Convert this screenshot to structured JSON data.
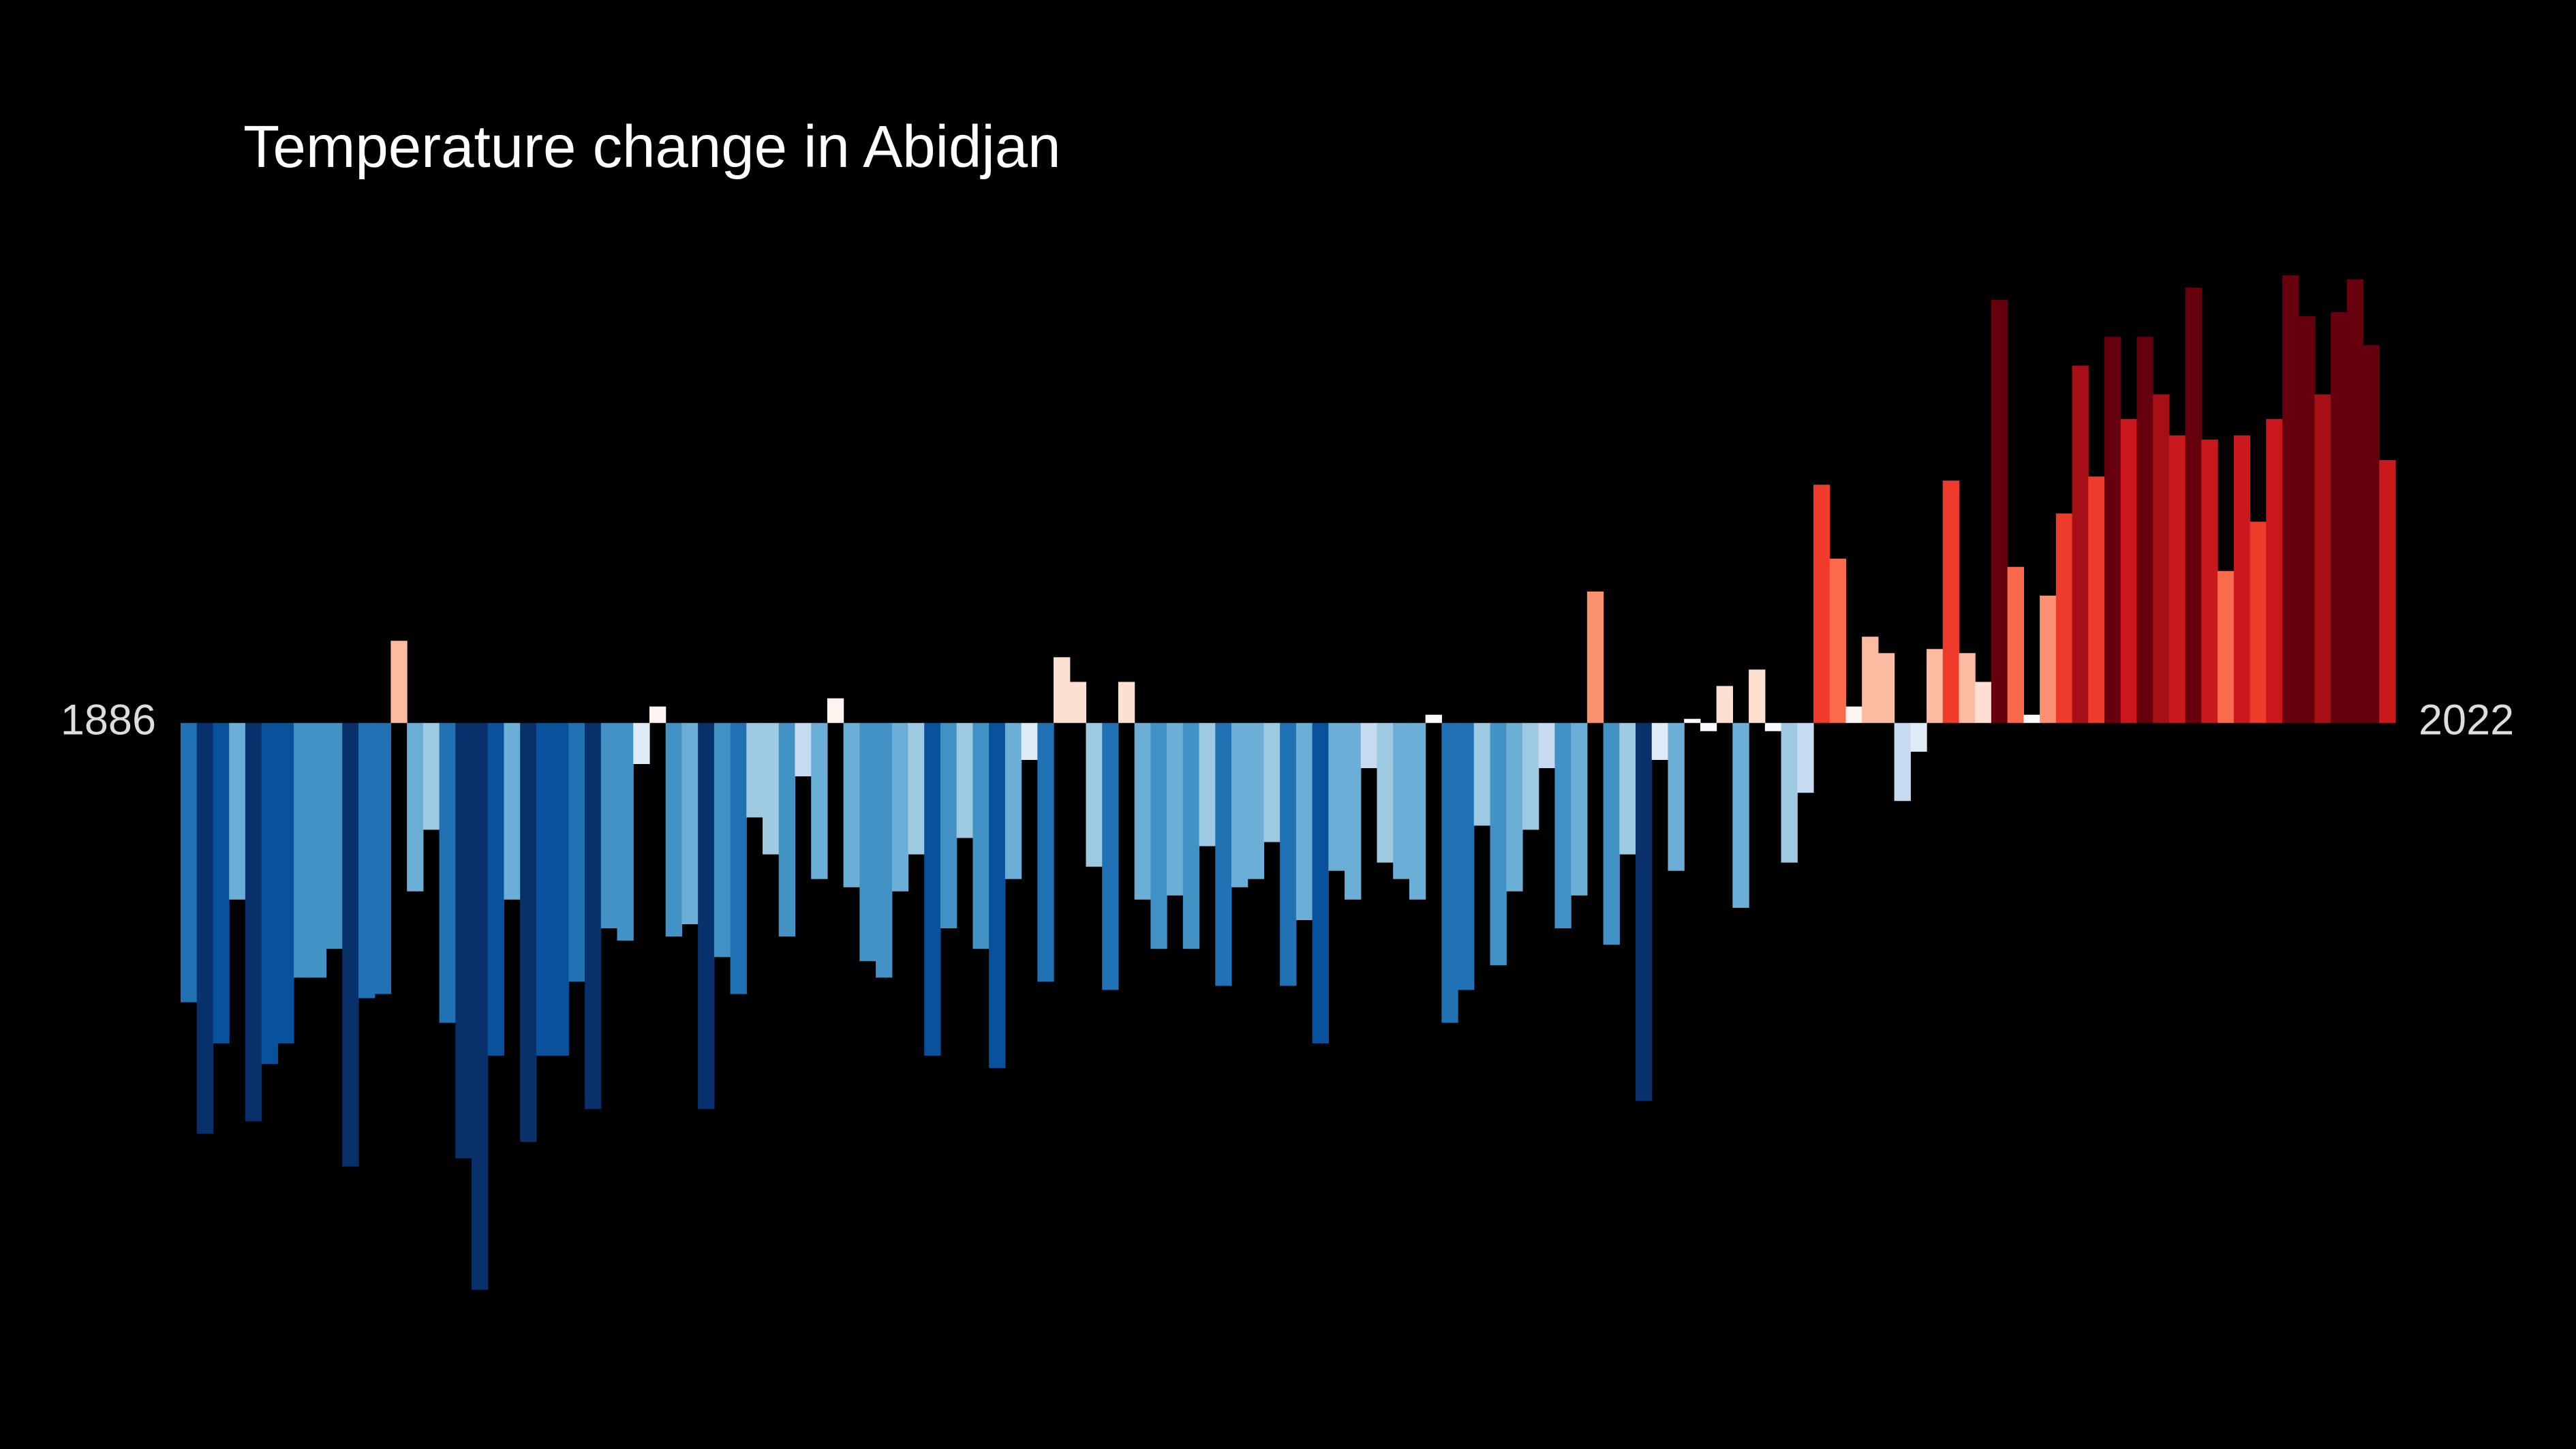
{
  "chart_data": {
    "type": "bar",
    "title": "Temperature change in Abidjan",
    "x": [
      1886,
      1887,
      1888,
      1889,
      1890,
      1891,
      1892,
      1893,
      1894,
      1895,
      1896,
      1897,
      1898,
      1899,
      1900,
      1901,
      1902,
      1903,
      1904,
      1905,
      1906,
      1907,
      1908,
      1909,
      1910,
      1911,
      1912,
      1913,
      1914,
      1915,
      1916,
      1917,
      1918,
      1919,
      1920,
      1921,
      1922,
      1923,
      1924,
      1925,
      1926,
      1927,
      1928,
      1929,
      1930,
      1931,
      1932,
      1933,
      1934,
      1935,
      1936,
      1937,
      1938,
      1939,
      1940,
      1941,
      1942,
      1943,
      1944,
      1945,
      1946,
      1947,
      1948,
      1949,
      1950,
      1951,
      1952,
      1953,
      1954,
      1955,
      1956,
      1957,
      1958,
      1959,
      1960,
      1961,
      1962,
      1963,
      1964,
      1965,
      1966,
      1967,
      1968,
      1969,
      1970,
      1971,
      1972,
      1973,
      1974,
      1975,
      1976,
      1977,
      1978,
      1979,
      1980,
      1981,
      1982,
      1983,
      1984,
      1985,
      1986,
      1987,
      1988,
      1989,
      1990,
      1991,
      1992,
      1993,
      1994,
      1995,
      1996,
      1997,
      1998,
      1999,
      2000,
      2001,
      2002,
      2003,
      2004,
      2005,
      2006,
      2007,
      2008,
      2009,
      2010,
      2011,
      2012,
      2013,
      2014,
      2015,
      2016,
      2017,
      2018,
      2019,
      2020,
      2021,
      2022
    ],
    "values": [
      -0.68,
      -1.0,
      -0.78,
      -0.43,
      -0.97,
      -0.83,
      -0.78,
      -0.62,
      -0.62,
      -0.55,
      -1.08,
      -0.67,
      -0.66,
      0.2,
      -0.41,
      -0.26,
      -0.73,
      -1.06,
      -1.38,
      -0.81,
      -0.43,
      -1.02,
      -0.81,
      -0.81,
      -0.63,
      -0.94,
      -0.5,
      -0.53,
      -0.1,
      0.04,
      -0.52,
      -0.49,
      -0.94,
      -0.57,
      -0.66,
      -0.23,
      -0.32,
      -0.52,
      -0.13,
      -0.38,
      0.06,
      -0.4,
      -0.58,
      -0.62,
      -0.41,
      -0.32,
      -0.81,
      -0.5,
      -0.28,
      -0.55,
      -0.84,
      -0.38,
      -0.09,
      -0.63,
      0.16,
      0.1,
      -0.35,
      -0.65,
      0.1,
      -0.43,
      -0.55,
      -0.42,
      -0.55,
      -0.3,
      -0.64,
      -0.4,
      -0.38,
      -0.29,
      -0.64,
      -0.48,
      -0.78,
      -0.36,
      -0.43,
      -0.11,
      -0.34,
      -0.38,
      -0.43,
      0.02,
      -0.73,
      -0.65,
      -0.25,
      -0.59,
      -0.41,
      -0.26,
      -0.11,
      -0.5,
      -0.42,
      0.32,
      -0.54,
      -0.32,
      -0.92,
      -0.09,
      -0.36,
      0.01,
      -0.02,
      0.09,
      -0.45,
      0.13,
      -0.02,
      -0.34,
      -0.17,
      0.58,
      0.4,
      0.04,
      0.21,
      0.17,
      -0.19,
      -0.07,
      0.18,
      0.59,
      0.17,
      0.1,
      1.03,
      0.38,
      0.02,
      0.31,
      0.51,
      0.87,
      0.6,
      0.94,
      0.74,
      0.94,
      0.8,
      0.7,
      1.06,
      0.69,
      0.37,
      0.7,
      0.49,
      0.74,
      1.09,
      0.99,
      0.8,
      1.0,
      1.08,
      0.92,
      0.64
    ],
    "xlim": [
      1885.5,
      2022.5
    ],
    "ylim": [
      -1.6,
      1.4
    ],
    "colorscale": [
      {
        "value": -1.0,
        "color": "#08306b"
      },
      {
        "value": -0.8,
        "color": "#08519c"
      },
      {
        "value": -0.68,
        "color": "#2171b5"
      },
      {
        "value": -0.56,
        "color": "#4292c6"
      },
      {
        "value": -0.42,
        "color": "#6baed6"
      },
      {
        "value": -0.28,
        "color": "#9ecae1"
      },
      {
        "value": -0.16,
        "color": "#c6dbef"
      },
      {
        "value": -0.06,
        "color": "#deebf7"
      },
      {
        "value": 0.0,
        "color": "#f7fbff"
      },
      {
        "value": 0.04,
        "color": "#fff5f0"
      },
      {
        "value": 0.12,
        "color": "#fee0d2"
      },
      {
        "value": 0.2,
        "color": "#fcbba1"
      },
      {
        "value": 0.3,
        "color": "#fc9272"
      },
      {
        "value": 0.4,
        "color": "#fb6a4a"
      },
      {
        "value": 0.55,
        "color": "#ef3b2c"
      },
      {
        "value": 0.7,
        "color": "#cb181d"
      },
      {
        "value": 0.82,
        "color": "#a50f15"
      },
      {
        "value": 0.92,
        "color": "#67000d"
      }
    ],
    "background": "#000000"
  }
}
